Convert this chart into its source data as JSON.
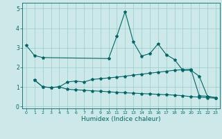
{
  "xlabel": "Humidex (Indice chaleur)",
  "xlim": [
    -0.5,
    23.5
  ],
  "ylim": [
    -0.1,
    5.3
  ],
  "yticks": [
    0,
    1,
    2,
    3,
    4,
    5
  ],
  "xticks": [
    0,
    1,
    2,
    3,
    4,
    5,
    6,
    7,
    8,
    9,
    10,
    11,
    12,
    13,
    14,
    15,
    16,
    17,
    18,
    19,
    20,
    21,
    22,
    23
  ],
  "bg_color": "#cce8e8",
  "grid_color": "#99cccc",
  "line_color": "#006666",
  "line1_x": [
    0,
    1,
    2,
    10,
    11,
    12,
    13,
    14,
    15,
    16,
    17,
    18,
    19,
    20,
    21,
    22,
    23
  ],
  "line1_y": [
    3.12,
    2.6,
    2.5,
    2.45,
    3.6,
    4.85,
    3.3,
    2.58,
    2.7,
    3.2,
    2.65,
    2.4,
    1.85,
    1.85,
    1.55,
    0.52,
    0.45
  ],
  "line2_x": [
    1,
    2,
    3,
    4,
    5,
    6,
    7,
    8,
    9,
    10,
    11,
    12,
    13,
    14,
    15,
    16,
    17,
    18,
    19,
    20,
    21,
    22,
    23
  ],
  "line2_y": [
    1.35,
    1.0,
    0.97,
    1.0,
    1.25,
    1.3,
    1.25,
    1.38,
    1.42,
    1.46,
    1.5,
    1.55,
    1.6,
    1.65,
    1.7,
    1.75,
    1.8,
    1.85,
    1.88,
    1.9,
    0.55,
    0.52,
    0.45
  ],
  "line3_x": [
    1,
    2,
    3,
    4,
    5,
    6,
    7,
    8,
    9,
    10,
    11,
    12,
    13,
    14,
    15,
    16,
    17,
    18,
    19,
    20,
    21,
    22,
    23
  ],
  "line3_y": [
    1.35,
    1.0,
    0.97,
    1.0,
    0.88,
    0.85,
    0.83,
    0.8,
    0.78,
    0.75,
    0.72,
    0.7,
    0.68,
    0.66,
    0.64,
    0.62,
    0.6,
    0.58,
    0.55,
    0.5,
    0.48,
    0.45,
    0.42
  ],
  "xticklabels": [
    "0",
    "1",
    "2",
    "3",
    "4",
    "5",
    "6",
    "7",
    "8",
    "9",
    "10",
    "11",
    "12",
    "13",
    "14",
    "15",
    "16",
    "17",
    "18",
    "19",
    "20",
    "21",
    "22",
    "23"
  ]
}
